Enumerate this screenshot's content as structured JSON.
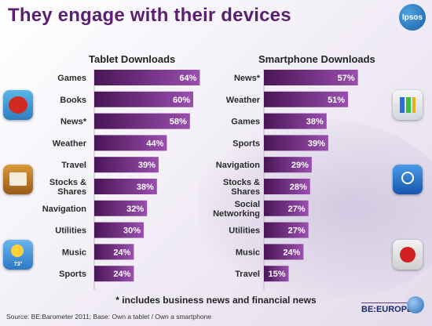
{
  "title": "They engage with their devices",
  "brand_logo": "Ipsos",
  "footnote": "* includes business news and financial news",
  "source": "Source: BE:Barometer 2011; Base: Own a tablet / Own a smartphone",
  "be_logo": {
    "name": "BE:EUROPE"
  },
  "icons": {
    "weather_icon_temp": "73°",
    "left": [
      "angry-birds-icon",
      "ibooks-icon",
      "weather-icon"
    ],
    "right": [
      "numbers-icon",
      "podcast-icon",
      "radio-icon"
    ]
  },
  "colors": {
    "bar_dark": "#4a1556",
    "bar_light": "#9a4fae",
    "title": "#5a1f6e"
  },
  "chart_data": [
    {
      "type": "bar",
      "orientation": "horizontal",
      "title": "Tablet Downloads",
      "categories": [
        "Games",
        "Books",
        "News*",
        "Weather",
        "Travel",
        "Stocks & Shares",
        "Navigation",
        "Utilities",
        "Music",
        "Sports"
      ],
      "values": [
        64,
        60,
        58,
        44,
        39,
        38,
        32,
        30,
        24,
        24
      ],
      "value_suffix": "%"
    },
    {
      "type": "bar",
      "orientation": "horizontal",
      "title": "Smartphone Downloads",
      "categories": [
        "News*",
        "Weather",
        "Games",
        "Sports",
        "Navigation",
        "Stocks & Shares",
        "Social Networking",
        "Utilities",
        "Music",
        "Travel"
      ],
      "values": [
        57,
        51,
        38,
        39,
        29,
        28,
        27,
        27,
        24,
        15
      ],
      "value_suffix": "%"
    }
  ]
}
